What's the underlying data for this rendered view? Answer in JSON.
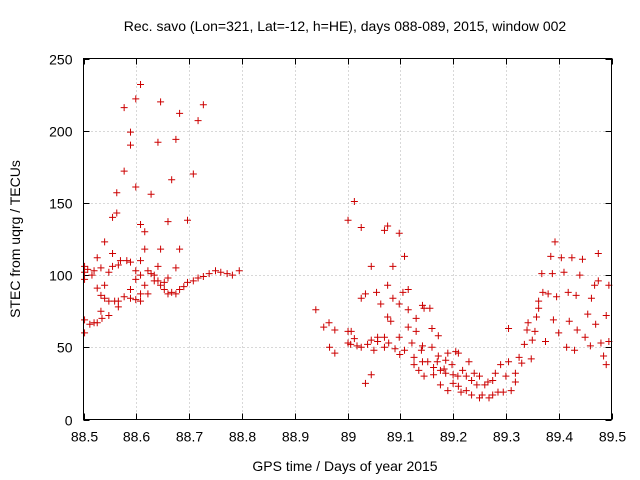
{
  "chart_data": {
    "type": "scatter",
    "title": "Rec. savo (Lon=321, Lat=-12, h=HE), days 088-089, 2015, window 002",
    "xlabel": "GPS time / Days of year 2015",
    "ylabel": "STEC from uqrg / TECUs",
    "xlim": [
      88.5,
      89.5
    ],
    "ylim": [
      0,
      250
    ],
    "xticks": [
      88.5,
      88.6,
      88.7,
      88.8,
      88.9,
      89.0,
      89.1,
      89.2,
      89.3,
      89.4,
      89.5
    ],
    "xtick_labels": [
      "88.5",
      "88.6",
      "88.7",
      "88.8",
      "88.9",
      "89",
      "89.1",
      "89.2",
      "89.3",
      "89.4",
      "89.5"
    ],
    "yticks": [
      0,
      50,
      100,
      150,
      200,
      250
    ],
    "ytick_labels": [
      "0",
      "50",
      "100",
      "150",
      "200",
      "250"
    ],
    "grid": true,
    "marker": "+",
    "color": "#cc0000",
    "points": [
      [
        88.502,
        106
      ],
      [
        88.502,
        102
      ],
      [
        88.502,
        97
      ],
      [
        88.502,
        69
      ],
      [
        88.502,
        60
      ],
      [
        88.508,
        104
      ],
      [
        88.512,
        66
      ],
      [
        88.516,
        100
      ],
      [
        88.52,
        103
      ],
      [
        88.52,
        67
      ],
      [
        88.526,
        112
      ],
      [
        88.526,
        91
      ],
      [
        88.526,
        67
      ],
      [
        88.533,
        105
      ],
      [
        88.533,
        86
      ],
      [
        88.533,
        75
      ],
      [
        88.535,
        70
      ],
      [
        88.54,
        123
      ],
      [
        88.54,
        93
      ],
      [
        88.54,
        84
      ],
      [
        88.548,
        102
      ],
      [
        88.548,
        82
      ],
      [
        88.548,
        72
      ],
      [
        88.555,
        140
      ],
      [
        88.555,
        115
      ],
      [
        88.555,
        106
      ],
      [
        88.559,
        82
      ],
      [
        88.563,
        157
      ],
      [
        88.563,
        143
      ],
      [
        88.566,
        107
      ],
      [
        88.566,
        82
      ],
      [
        88.566,
        78
      ],
      [
        88.57,
        110
      ],
      [
        88.577,
        172
      ],
      [
        88.577,
        216
      ],
      [
        88.577,
        85
      ],
      [
        88.582,
        110
      ],
      [
        88.589,
        190
      ],
      [
        88.589,
        199
      ],
      [
        88.589,
        109
      ],
      [
        88.589,
        90
      ],
      [
        88.589,
        84
      ],
      [
        88.599,
        222
      ],
      [
        88.599,
        161
      ],
      [
        88.599,
        103
      ],
      [
        88.599,
        97
      ],
      [
        88.599,
        83
      ],
      [
        88.608,
        232
      ],
      [
        88.608,
        135
      ],
      [
        88.608,
        110
      ],
      [
        88.608,
        100
      ],
      [
        88.608,
        87
      ],
      [
        88.608,
        82
      ],
      [
        88.616,
        130
      ],
      [
        88.616,
        118
      ],
      [
        88.616,
        93
      ],
      [
        88.622,
        103
      ],
      [
        88.622,
        87
      ],
      [
        88.628,
        156
      ],
      [
        88.628,
        101
      ],
      [
        88.634,
        100
      ],
      [
        88.634,
        96
      ],
      [
        88.641,
        192
      ],
      [
        88.641,
        106
      ],
      [
        88.641,
        96
      ],
      [
        88.646,
        220
      ],
      [
        88.646,
        118
      ],
      [
        88.646,
        93
      ],
      [
        88.653,
        95
      ],
      [
        88.653,
        90
      ],
      [
        88.66,
        137
      ],
      [
        88.66,
        98
      ],
      [
        88.66,
        87
      ],
      [
        88.667,
        166
      ],
      [
        88.667,
        88
      ],
      [
        88.675,
        194
      ],
      [
        88.675,
        105
      ],
      [
        88.675,
        87
      ],
      [
        88.682,
        212
      ],
      [
        88.682,
        118
      ],
      [
        88.682,
        90
      ],
      [
        88.69,
        92
      ],
      [
        88.697,
        138
      ],
      [
        88.697,
        95
      ],
      [
        88.708,
        170
      ],
      [
        88.708,
        96
      ],
      [
        88.717,
        98
      ],
      [
        88.717,
        207
      ],
      [
        88.727,
        218
      ],
      [
        88.727,
        99
      ],
      [
        88.738,
        101
      ],
      [
        88.75,
        103
      ],
      [
        88.76,
        102
      ],
      [
        88.772,
        101
      ],
      [
        88.782,
        100
      ],
      [
        88.795,
        103
      ],
      [
        88.94,
        76
      ],
      [
        88.955,
        64
      ],
      [
        88.965,
        67
      ],
      [
        88.966,
        50
      ],
      [
        88.976,
        62
      ],
      [
        88.976,
        46
      ],
      [
        89.001,
        138
      ],
      [
        89.001,
        61
      ],
      [
        89.001,
        53
      ],
      [
        89.006,
        52
      ],
      [
        89.007,
        61
      ],
      [
        89.013,
        151
      ],
      [
        89.013,
        56
      ],
      [
        89.018,
        51
      ],
      [
        89.026,
        133
      ],
      [
        89.026,
        84
      ],
      [
        89.026,
        50
      ],
      [
        89.034,
        87
      ],
      [
        89.034,
        25
      ],
      [
        89.038,
        52
      ],
      [
        89.045,
        106
      ],
      [
        89.045,
        55
      ],
      [
        89.045,
        31
      ],
      [
        89.05,
        48
      ],
      [
        89.055,
        88
      ],
      [
        89.057,
        57
      ],
      [
        89.057,
        54
      ],
      [
        89.063,
        80
      ],
      [
        89.07,
        131
      ],
      [
        89.07,
        57
      ],
      [
        89.07,
        50
      ],
      [
        89.076,
        134
      ],
      [
        89.076,
        93
      ],
      [
        89.076,
        71
      ],
      [
        89.078,
        53
      ],
      [
        89.082,
        68
      ],
      [
        89.086,
        106
      ],
      [
        89.086,
        84
      ],
      [
        89.09,
        49
      ],
      [
        89.098,
        129
      ],
      [
        89.098,
        80
      ],
      [
        89.098,
        57
      ],
      [
        89.099,
        45
      ],
      [
        89.105,
        88
      ],
      [
        89.108,
        113
      ],
      [
        89.108,
        48
      ],
      [
        89.115,
        90
      ],
      [
        89.115,
        76
      ],
      [
        89.115,
        64
      ],
      [
        89.122,
        53
      ],
      [
        89.126,
        38
      ],
      [
        89.126,
        43
      ],
      [
        89.13,
        70
      ],
      [
        89.13,
        61
      ],
      [
        89.135,
        34
      ],
      [
        89.14,
        48
      ],
      [
        89.142,
        79
      ],
      [
        89.142,
        51
      ],
      [
        89.142,
        40
      ],
      [
        89.145,
        77
      ],
      [
        89.145,
        30
      ],
      [
        89.152,
        40
      ],
      [
        89.156,
        77
      ],
      [
        89.16,
        63
      ],
      [
        89.16,
        50
      ],
      [
        89.163,
        36
      ],
      [
        89.163,
        31
      ],
      [
        89.17,
        40
      ],
      [
        89.172,
        44
      ],
      [
        89.172,
        58
      ],
      [
        89.176,
        34
      ],
      [
        89.176,
        24
      ],
      [
        89.183,
        35
      ],
      [
        89.186,
        41
      ],
      [
        89.186,
        32
      ],
      [
        89.19,
        46
      ],
      [
        89.19,
        20
      ],
      [
        89.198,
        38
      ],
      [
        89.2,
        31
      ],
      [
        89.2,
        25
      ],
      [
        89.205,
        47
      ],
      [
        89.209,
        30
      ],
      [
        89.21,
        46
      ],
      [
        89.21,
        23
      ],
      [
        89.215,
        19
      ],
      [
        89.218,
        34
      ],
      [
        89.225,
        30
      ],
      [
        89.225,
        20
      ],
      [
        89.23,
        40
      ],
      [
        89.235,
        27
      ],
      [
        89.235,
        17
      ],
      [
        89.24,
        32
      ],
      [
        89.245,
        24
      ],
      [
        89.25,
        30
      ],
      [
        89.25,
        15
      ],
      [
        89.255,
        17
      ],
      [
        89.26,
        24
      ],
      [
        89.266,
        26
      ],
      [
        89.268,
        15
      ],
      [
        89.275,
        27
      ],
      [
        89.275,
        17
      ],
      [
        89.28,
        32
      ],
      [
        89.285,
        19
      ],
      [
        89.29,
        38
      ],
      [
        89.295,
        19
      ],
      [
        89.3,
        30
      ],
      [
        89.305,
        40
      ],
      [
        89.305,
        63
      ],
      [
        89.31,
        20
      ],
      [
        89.318,
        32
      ],
      [
        89.318,
        26
      ],
      [
        89.325,
        43
      ],
      [
        89.33,
        39
      ],
      [
        89.335,
        52
      ],
      [
        89.34,
        62
      ],
      [
        89.342,
        67
      ],
      [
        89.348,
        42
      ],
      [
        89.35,
        55
      ],
      [
        89.355,
        61
      ],
      [
        89.358,
        71
      ],
      [
        89.362,
        77
      ],
      [
        89.362,
        82
      ],
      [
        89.368,
        101
      ],
      [
        89.37,
        88
      ],
      [
        89.375,
        54
      ],
      [
        89.38,
        87
      ],
      [
        89.385,
        113
      ],
      [
        89.388,
        101
      ],
      [
        89.39,
        69
      ],
      [
        89.393,
        123
      ],
      [
        89.396,
        85
      ],
      [
        89.4,
        60
      ],
      [
        89.405,
        112
      ],
      [
        89.41,
        102
      ],
      [
        89.415,
        50
      ],
      [
        89.418,
        88
      ],
      [
        89.42,
        68
      ],
      [
        89.425,
        112
      ],
      [
        89.43,
        48
      ],
      [
        89.433,
        86
      ],
      [
        89.435,
        62
      ],
      [
        89.44,
        100
      ],
      [
        89.445,
        111
      ],
      [
        89.45,
        57
      ],
      [
        89.455,
        73
      ],
      [
        89.46,
        51
      ],
      [
        89.462,
        84
      ],
      [
        89.468,
        93
      ],
      [
        89.47,
        66
      ],
      [
        89.475,
        96
      ],
      [
        89.475,
        115
      ],
      [
        89.48,
        53
      ],
      [
        89.485,
        44
      ],
      [
        89.49,
        38
      ],
      [
        89.49,
        72
      ],
      [
        89.495,
        93
      ],
      [
        89.495,
        54
      ]
    ]
  }
}
